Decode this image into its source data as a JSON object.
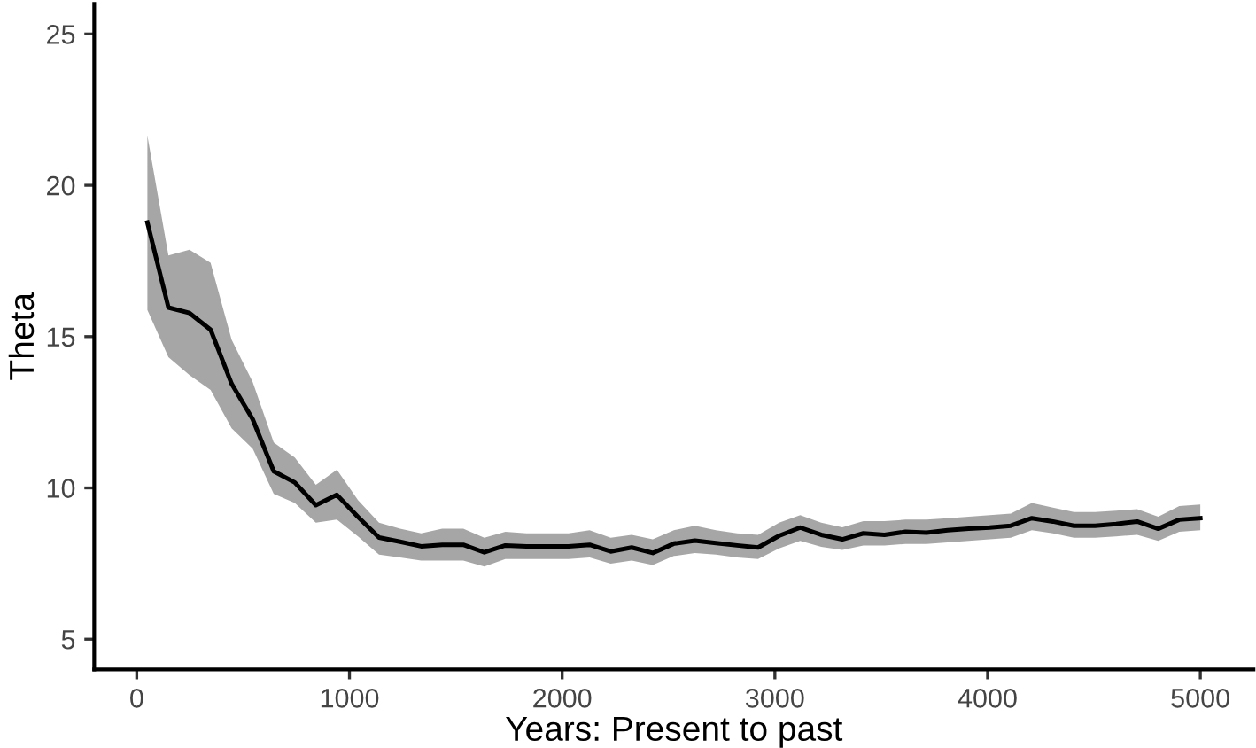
{
  "chart_data": {
    "type": "line",
    "xlabel": "Years: Present to past",
    "ylabel": "Theta",
    "x": [
      50,
      149,
      248,
      347,
      446,
      545,
      644,
      743,
      842,
      941,
      1040,
      1139,
      1238,
      1337,
      1436,
      1535,
      1634,
      1733,
      1832,
      1931,
      2030,
      2129,
      2228,
      2327,
      2426,
      2525,
      2624,
      2723,
      2822,
      2921,
      3020,
      3119,
      3218,
      3317,
      3416,
      3515,
      3614,
      3713,
      3812,
      3911,
      4010,
      4109,
      4208,
      4307,
      4406,
      4505,
      4604,
      4703,
      4802,
      4901,
      5000
    ],
    "series": [
      {
        "color": "#000000",
        "values": [
          18.77,
          15.96,
          15.78,
          15.23,
          13.44,
          12.27,
          10.55,
          10.18,
          9.43,
          9.77,
          9.04,
          8.36,
          8.22,
          8.07,
          8.12,
          8.12,
          7.87,
          8.1,
          8.07,
          8.07,
          8.07,
          8.12,
          7.9,
          8.03,
          7.85,
          8.16,
          8.26,
          8.18,
          8.1,
          8.03,
          8.42,
          8.69,
          8.45,
          8.3,
          8.5,
          8.45,
          8.55,
          8.52,
          8.6,
          8.65,
          8.69,
          8.75,
          9.0,
          8.89,
          8.75,
          8.75,
          8.81,
          8.89,
          8.65,
          8.95,
          9.0
        ],
        "lower": [
          15.88,
          14.32,
          13.73,
          13.24,
          11.97,
          11.3,
          9.8,
          9.5,
          8.85,
          8.95,
          8.4,
          7.8,
          7.7,
          7.6,
          7.6,
          7.6,
          7.4,
          7.65,
          7.65,
          7.65,
          7.65,
          7.7,
          7.5,
          7.6,
          7.45,
          7.75,
          7.85,
          7.8,
          7.7,
          7.65,
          8.0,
          8.25,
          8.05,
          7.95,
          8.1,
          8.1,
          8.15,
          8.15,
          8.2,
          8.25,
          8.3,
          8.35,
          8.6,
          8.5,
          8.35,
          8.35,
          8.4,
          8.45,
          8.25,
          8.55,
          8.6
        ],
        "upper": [
          21.64,
          17.68,
          17.87,
          17.44,
          14.9,
          13.5,
          11.5,
          11.0,
          10.1,
          10.6,
          9.6,
          8.85,
          8.65,
          8.5,
          8.65,
          8.65,
          8.35,
          8.55,
          8.5,
          8.5,
          8.5,
          8.6,
          8.35,
          8.45,
          8.3,
          8.6,
          8.75,
          8.6,
          8.5,
          8.45,
          8.85,
          9.1,
          8.85,
          8.7,
          8.9,
          8.9,
          8.95,
          8.95,
          9.0,
          9.05,
          9.1,
          9.15,
          9.5,
          9.35,
          9.2,
          9.2,
          9.25,
          9.3,
          9.05,
          9.4,
          9.45
        ]
      }
    ],
    "xlim": [
      -200,
      5250
    ],
    "xticks": [
      0,
      1000,
      2000,
      3000,
      4000,
      5000
    ],
    "ylim": [
      4,
      26
    ],
    "yticks": [
      5,
      10,
      15,
      20,
      25
    ],
    "grid": false,
    "marker": "none",
    "line_style": "solid"
  }
}
